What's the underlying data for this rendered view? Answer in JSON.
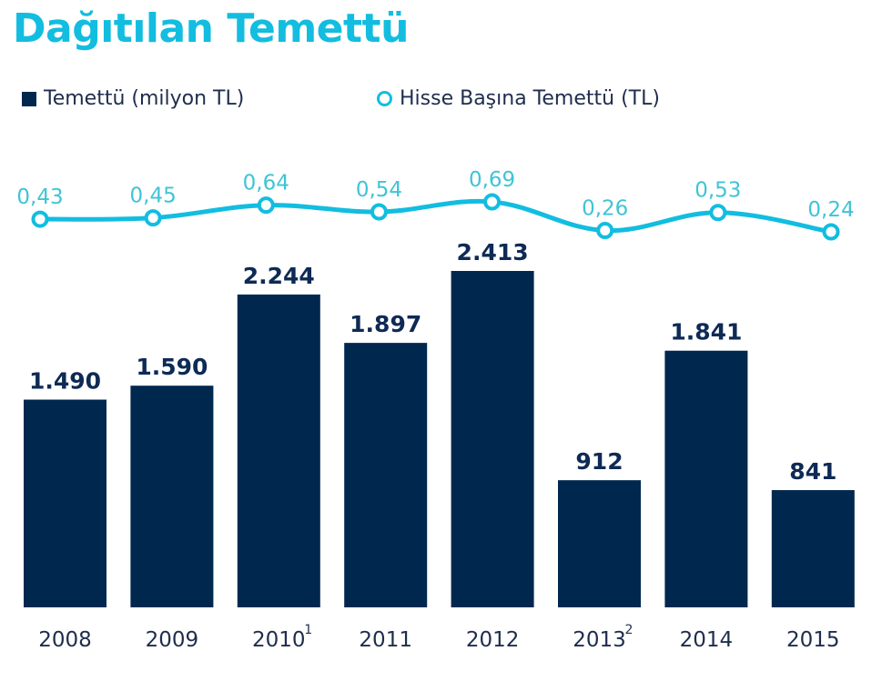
{
  "colors": {
    "bar": "#00284f",
    "line": "#12bde0",
    "title": "#12bde0",
    "line_label": "#3fc4d6"
  },
  "chart_data": {
    "type": "bar",
    "title": "Dağıtılan Temettü",
    "categories": [
      "2008",
      "2009",
      "2010",
      "2011",
      "2012",
      "2013",
      "2014",
      "2015"
    ],
    "category_footnotes": [
      "",
      "",
      "1",
      "",
      "",
      "2",
      "",
      ""
    ],
    "series": [
      {
        "name": "Temettü (milyon TL)",
        "type": "bar",
        "values": [
          1490,
          1590,
          2244,
          1897,
          2413,
          912,
          1841,
          841
        ],
        "labels": [
          "1.490",
          "1.590",
          "2.244",
          "1.897",
          "2.413",
          "912",
          "1.841",
          "841"
        ]
      },
      {
        "name": "Hisse Başına Temettü (TL)",
        "type": "line",
        "values": [
          0.43,
          0.45,
          0.64,
          0.54,
          0.69,
          0.26,
          0.53,
          0.24
        ],
        "labels": [
          "0,43",
          "0,45",
          "0,64",
          "0,54",
          "0,69",
          "0,26",
          "0,53",
          "0,24"
        ]
      }
    ],
    "legend_position": "top-left",
    "grid": false
  }
}
